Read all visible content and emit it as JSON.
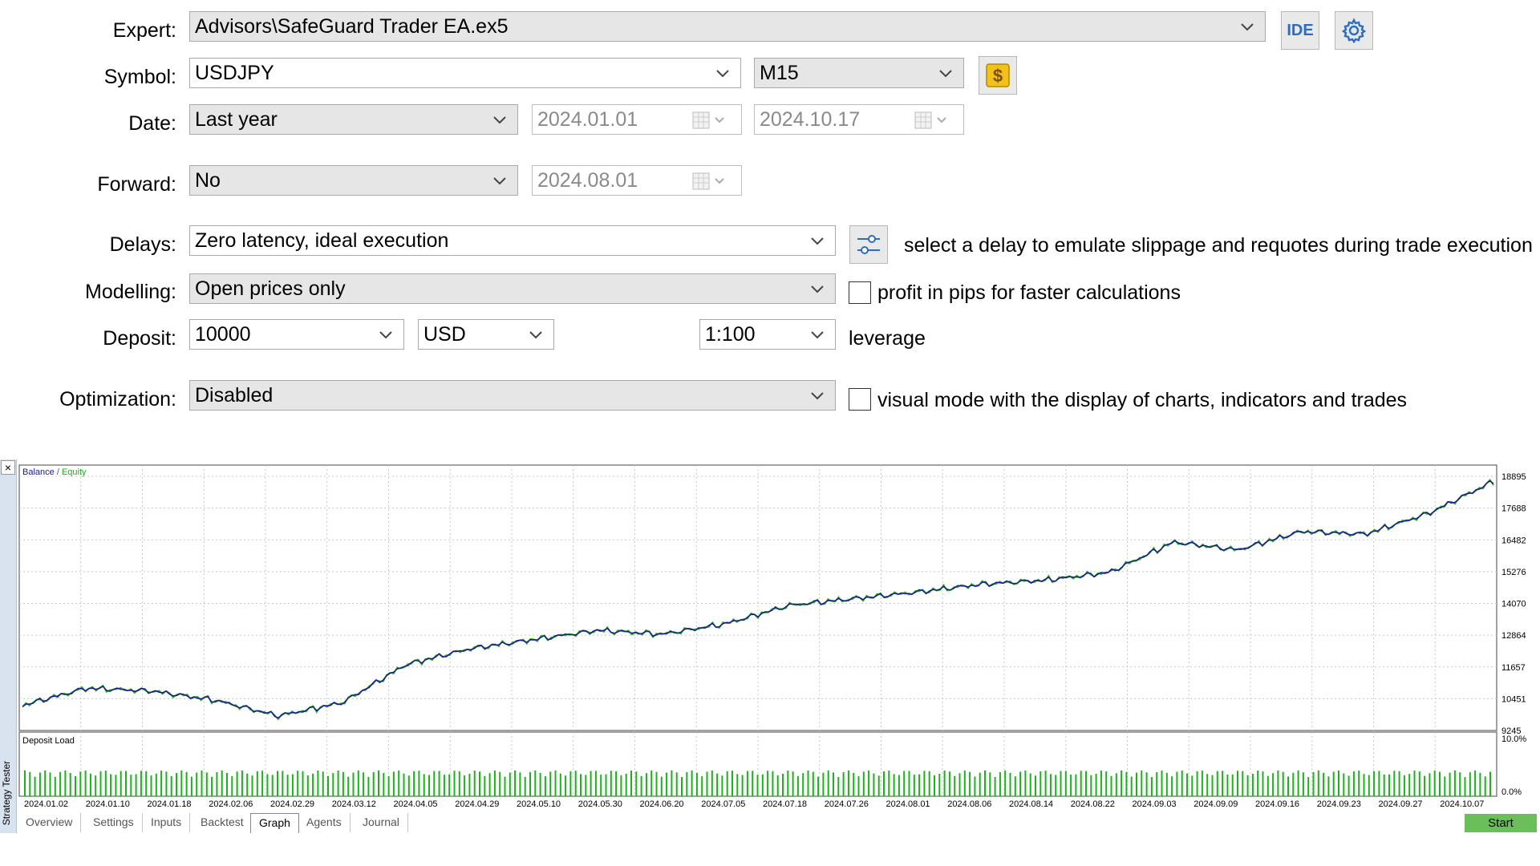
{
  "form": {
    "expert": {
      "label": "Expert:",
      "value": "Advisors\\SafeGuard Trader EA.ex5",
      "ide_label": "IDE"
    },
    "symbol": {
      "label": "Symbol:",
      "value": "USDJPY",
      "period": "M15"
    },
    "date": {
      "label": "Date:",
      "range": "Last year",
      "from": "2024.01.01",
      "to": "2024.10.17"
    },
    "forward": {
      "label": "Forward:",
      "value": "No",
      "date": "2024.08.01"
    },
    "delays": {
      "label": "Delays:",
      "value": "Zero latency, ideal execution",
      "hint": "select a delay to emulate slippage and requotes during trade execution"
    },
    "modelling": {
      "label": "Modelling:",
      "value": "Open prices only",
      "checkbox_label": "profit in pips for faster calculations"
    },
    "deposit": {
      "label": "Deposit:",
      "value": "10000",
      "currency": "USD",
      "leverage": "1:100",
      "leverage_label": "leverage"
    },
    "optimization": {
      "label": "Optimization:",
      "value": "Disabled",
      "checkbox_label": "visual mode with the display of charts, indicators and trades"
    }
  },
  "tester": {
    "side_label": "Strategy Tester",
    "close": "×",
    "tabs": [
      "Overview",
      "Settings",
      "Inputs",
      "Backtest",
      "Graph",
      "Agents",
      "Journal"
    ],
    "active_tab": "Graph",
    "start_label": "Start",
    "colors": {
      "balance": "#1a1a8c",
      "equity": "#18b418",
      "deposit": "#18b418",
      "start": "#6abf5a"
    }
  },
  "chart_data": [
    {
      "type": "line",
      "legend": [
        "Balance",
        "Equity"
      ],
      "legend_sep": " / ",
      "yticks": [
        "18895",
        "17688",
        "16482",
        "15276",
        "14070",
        "12864",
        "11657",
        "10451",
        "9245"
      ],
      "ylim": [
        9245,
        18895
      ],
      "grid": true,
      "series": [
        {
          "name": "Balance",
          "x": [
            "2024.01.02",
            "2024.01.18",
            "2024.02.06",
            "2024.02.29",
            "2024.03.12",
            "2024.04.05",
            "2024.04.29",
            "2024.05.10",
            "2024.05.30",
            "2024.06.20",
            "2024.07.05",
            "2024.07.18",
            "2024.07.26",
            "2024.08.01",
            "2024.08.06",
            "2024.08.14",
            "2024.08.22",
            "2024.09.03",
            "2024.09.09",
            "2024.09.16",
            "2024.09.23",
            "2024.09.27",
            "2024.10.07",
            "2024.10.17"
          ],
          "values": [
            10200,
            10850,
            10750,
            10400,
            9800,
            10300,
            11750,
            12350,
            12700,
            13050,
            12900,
            13300,
            14000,
            14250,
            14500,
            14800,
            14950,
            15250,
            16400,
            16100,
            16800,
            16700,
            17500,
            18700
          ]
        }
      ]
    },
    {
      "type": "bar",
      "title": "Deposit Load",
      "yticks": [
        "10.0%",
        "0.0%"
      ],
      "ylim": [
        0,
        10
      ],
      "xticks": [
        "2024.01.02",
        "2024.01.10",
        "2024.01.18",
        "2024.02.06",
        "2024.02.29",
        "2024.03.12",
        "2024.04.05",
        "2024.04.29",
        "2024.05.10",
        "2024.05.30",
        "2024.06.20",
        "2024.07.05",
        "2024.07.18",
        "2024.07.26",
        "2024.08.01",
        "2024.08.06",
        "2024.08.14",
        "2024.08.22",
        "2024.09.03",
        "2024.09.09",
        "2024.09.16",
        "2024.09.23",
        "2024.09.27",
        "2024.10.07"
      ],
      "typical_load": 4
    }
  ]
}
